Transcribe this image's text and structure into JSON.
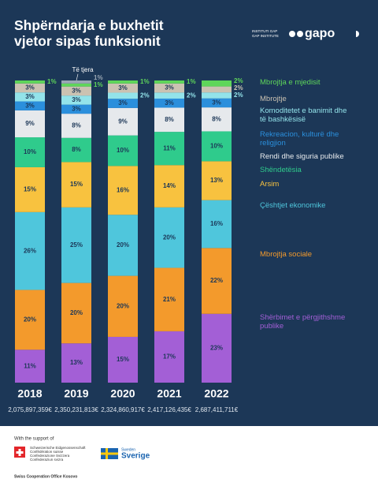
{
  "chart_data": {
    "type": "stacked_bar_100",
    "title": "Shpërndarja e buxhetit vjetor sipas funksionit",
    "logo": {
      "small": [
        "INSTITUTI GAP",
        "GAP INSTITUTE"
      ],
      "name": "gapo"
    },
    "categories": [
      "2018",
      "2019",
      "2020",
      "2021",
      "2022"
    ],
    "totals": [
      "2,075,897,359€",
      "2,350,231,813€",
      "2,324,860,917€",
      "2,417,126,435€",
      "2,687,411,711€"
    ],
    "series": [
      {
        "name": "Shërbimet e përgjithshme publike",
        "color": "#a35fd6",
        "values": [
          11,
          13,
          15,
          17,
          23
        ],
        "value_labels": [
          "11%",
          "13%",
          "15%",
          "17%",
          "23%"
        ]
      },
      {
        "name": "Mbrojtja sociale",
        "color": "#f39a2c",
        "values": [
          20,
          20,
          20,
          21,
          22
        ],
        "value_labels": [
          "20%",
          "20%",
          "20%",
          "21%",
          "22%"
        ]
      },
      {
        "name": "Çështjet ekonomike",
        "color": "#4fc6dc",
        "values": [
          26,
          25,
          20,
          20,
          16
        ],
        "value_labels": [
          "26%",
          "25%",
          "20%",
          "20%",
          "16%"
        ]
      },
      {
        "name": "Arsim",
        "color": "#f8c23f",
        "values": [
          15,
          15,
          16,
          14,
          13
        ],
        "value_labels": [
          "15%",
          "15%",
          "16%",
          "14%",
          "13%"
        ]
      },
      {
        "name": "Shëndetësia",
        "color": "#2fcb8c",
        "values": [
          10,
          8,
          10,
          11,
          10
        ],
        "value_labels": [
          "10%",
          "8%",
          "10%",
          "11%",
          "10%"
        ]
      },
      {
        "name": "Rendi dhe siguria publike",
        "color": "#e6e9ec",
        "values": [
          9,
          8,
          9,
          8,
          8
        ],
        "value_labels": [
          "9%",
          "8%",
          "9%",
          "8%",
          "8%"
        ]
      },
      {
        "name": "Rekreacion, kulturë dhe religjion",
        "color": "#2b8fdc",
        "values": [
          3,
          3,
          3,
          3,
          3
        ],
        "value_labels": [
          "3%",
          "3%",
          "3%",
          "3%",
          "3%"
        ]
      },
      {
        "name": "Komoditetet e banimit dhe të bashkësisë",
        "color": "#93e3ea",
        "values": [
          3,
          3,
          2,
          2,
          2
        ],
        "value_labels": [
          "3%",
          "3%",
          "2%",
          "2%",
          "2%"
        ]
      },
      {
        "name": "Mbrojtje",
        "color": "#cbc2b2",
        "values": [
          3,
          3,
          3,
          3,
          2
        ],
        "value_labels": [
          "3%",
          "3%",
          "3%",
          "3%",
          "2%"
        ]
      },
      {
        "name": "Mbrojtja e mjedisit",
        "color": "#5fd65a",
        "values": [
          1,
          1,
          1,
          1,
          2
        ],
        "value_labels": [
          "1%",
          "1%",
          "1%",
          "1%",
          "2%"
        ]
      },
      {
        "name": "Të tjera",
        "color": "#9aa7b4",
        "legend": false,
        "values": [
          null,
          1,
          null,
          null,
          null
        ],
        "value_labels": [
          null,
          "1%",
          null,
          null,
          null
        ]
      }
    ]
  },
  "footer": {
    "support": "With the support of",
    "swiss": [
      "Schweizerische Eidgenossenschaft",
      "Confédération suisse",
      "Confederazione Svizzera",
      "Confederaziun svizra"
    ],
    "swiss_office": "Swiss Cooperation Office Kosovo",
    "sweden_small": "Sweden",
    "sweden": "Sverige"
  }
}
